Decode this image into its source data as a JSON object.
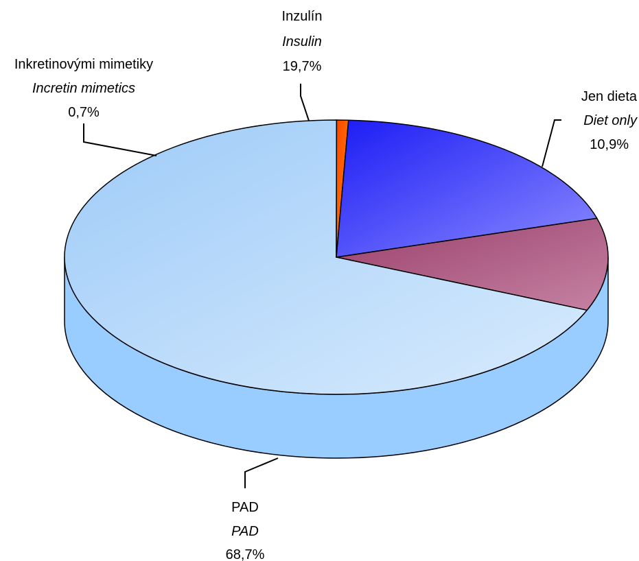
{
  "chart_data": {
    "type": "pie",
    "style": "3d",
    "slices": [
      {
        "label": "Jen dieta",
        "label_en": "Diet only",
        "value": 10.9,
        "value_text": "10,9%",
        "color": "#b06a8c"
      },
      {
        "label": "PAD",
        "label_en": "PAD",
        "value": 68.7,
        "value_text": "68,7%",
        "color": "#a8d2fb"
      },
      {
        "label": "Inkretinovými mimetiky",
        "label_en": "Incretin mimetics",
        "value": 0.7,
        "value_text": "0,7%",
        "color": "#ff6600"
      },
      {
        "label": "Inzulín",
        "label_en": "Insulin",
        "value": 19.7,
        "value_text": "19,7%",
        "color": "#4f4fff"
      }
    ],
    "side_color": "#99ccff",
    "legend": "none"
  }
}
